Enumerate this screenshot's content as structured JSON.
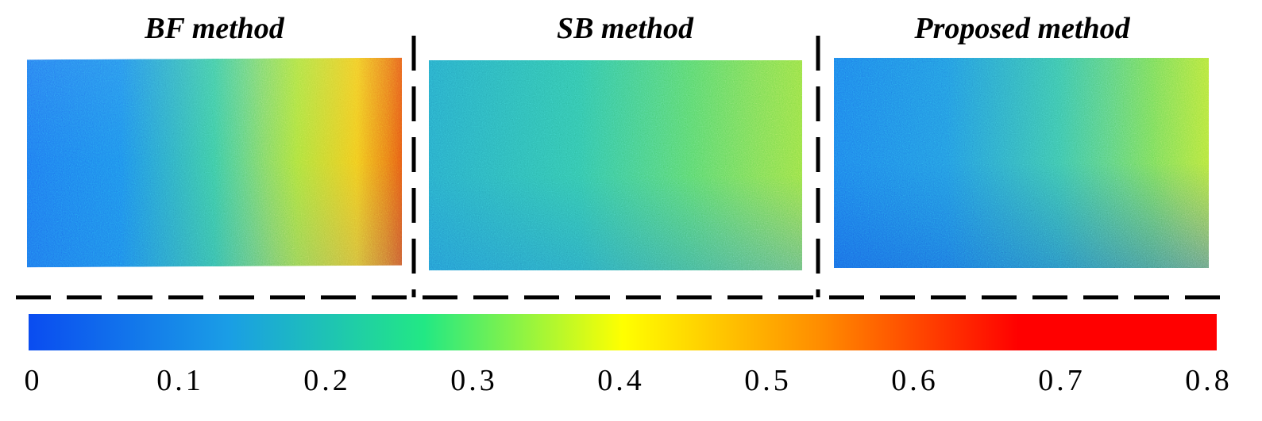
{
  "panels": [
    {
      "title": "BF method"
    },
    {
      "title": "SB method"
    },
    {
      "title": "Proposed method"
    }
  ],
  "colorbar": {
    "min": 0,
    "max": 0.8,
    "colormap": [
      "#0a4cf0",
      "#1a9de6",
      "#22e884",
      "#ffff00",
      "#ff8c00",
      "#ff0000",
      "#ff0000"
    ],
    "tick_labels": [
      "0",
      "0.1",
      "0.2",
      "0.3",
      "0.4",
      "0.5",
      "0.6",
      "0.7",
      "0.8"
    ]
  },
  "colors": {
    "low": "#1e78f0",
    "mid": "#40d470",
    "high": "#e04010",
    "divider": "#000000"
  }
}
